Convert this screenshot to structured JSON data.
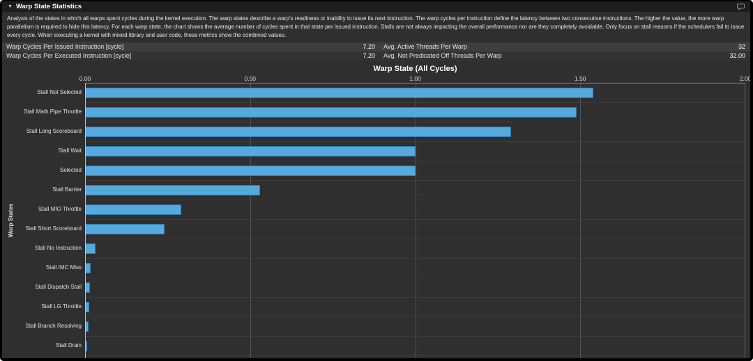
{
  "header": {
    "collapse_icon": "▼",
    "title": "Warp State Statistics"
  },
  "description": "Analysis of the states in which all warps spent cycles during the kernel execution. The warp states describe a warp's readiness or inability to issue its next instruction. The warp cycles per instruction define the latency between two consecutive instructions. The higher the value, the more warp parallelism is required to hide this latency. For each warp state, the chart shows the average number of cycles spent in that state per issued instruction. Stalls are not always impacting the overall performance nor are they completely avoidable. Only focus on stall reasons if the schedulers fail to issue every cycle. When executing a kernel with mixed library and user code, these metrics show the combined values.",
  "metrics_table": {
    "rows": [
      {
        "metric1": "Warp Cycles Per Issued Instruction [cycle]",
        "value1": "7.20",
        "metric2": "Avg. Active Threads Per Warp",
        "value2": "32"
      },
      {
        "metric1": "Warp Cycles Per Executed Instruction [cycle]",
        "value1": "7.20",
        "metric2": "Avg. Not Predicated Off Threads Per Warp",
        "value2": "32.00"
      }
    ]
  },
  "chart_data": {
    "type": "bar",
    "orientation": "horizontal",
    "title": "Warp State (All Cycles)",
    "ylabel": "Warp States",
    "xlabel": "",
    "xlim": [
      0,
      2.0
    ],
    "x_ticks": [
      0,
      0.5,
      1.0,
      1.5,
      2.0
    ],
    "x_tick_labels": [
      "0.00",
      "0.50",
      "1.00",
      "1.50",
      "2.00"
    ],
    "grid": true,
    "legend": "none",
    "bar_color": "#55a9dd",
    "bar_border_color": "#2d7cb0",
    "background_color": "#2f2f2f",
    "categories": [
      "Stall Not Selected",
      "Stall Math Pipe Throttle",
      "Stall Long Scoreboard",
      "Stall Wait",
      "Selected",
      "Stall Barrier",
      "Stall MIO Throttle",
      "Stall Short Scoreboard",
      "Stall No Instruction",
      "Stall IMC Miss",
      "Stall Dispatch Stall",
      "Stall LG Throttle",
      "Stall Branch Resolving",
      "Stall Drain"
    ],
    "values": [
      1.54,
      1.49,
      1.29,
      1.0,
      1.0,
      0.53,
      0.29,
      0.24,
      0.03,
      0.015,
      0.012,
      0.01,
      0.008,
      0.005
    ]
  }
}
